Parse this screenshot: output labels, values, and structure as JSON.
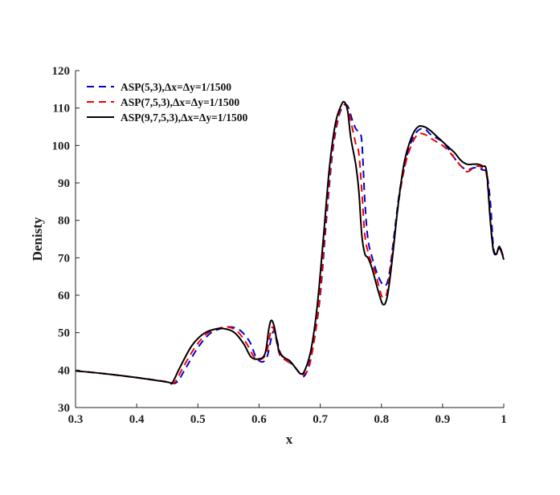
{
  "chart_data": {
    "type": "line",
    "xlabel": "x",
    "ylabel": "Denisty",
    "xlim": [
      0.3,
      1.0
    ],
    "ylim": [
      30,
      120
    ],
    "xticks": [
      "0.3",
      "0.4",
      "0.5",
      "0.6",
      "0.7",
      "0.8",
      "0.9",
      "1"
    ],
    "yticks": [
      "30",
      "40",
      "50",
      "60",
      "70",
      "80",
      "90",
      "100",
      "110",
      "120"
    ],
    "grid": false,
    "legend_position": "top-left",
    "series": [
      {
        "name": "ASP(5,3),Δx=Δy=1/1500",
        "color": "#0000cc",
        "style": "dashed",
        "points": [
          [
            0.3,
            39.8
          ],
          [
            0.35,
            39.0
          ],
          [
            0.4,
            38.0
          ],
          [
            0.45,
            36.9
          ],
          [
            0.465,
            36.7
          ],
          [
            0.48,
            40.5
          ],
          [
            0.5,
            46.0
          ],
          [
            0.52,
            49.8
          ],
          [
            0.54,
            51.2
          ],
          [
            0.555,
            51.5
          ],
          [
            0.57,
            50.5
          ],
          [
            0.585,
            47.5
          ],
          [
            0.595,
            43.5
          ],
          [
            0.605,
            42.2
          ],
          [
            0.613,
            43.5
          ],
          [
            0.62,
            48.5
          ],
          [
            0.624,
            50.5
          ],
          [
            0.628,
            49.0
          ],
          [
            0.635,
            44.5
          ],
          [
            0.645,
            42.5
          ],
          [
            0.655,
            41.5
          ],
          [
            0.665,
            39.5
          ],
          [
            0.672,
            38.2
          ],
          [
            0.68,
            40.5
          ],
          [
            0.69,
            48.0
          ],
          [
            0.7,
            60.0
          ],
          [
            0.71,
            80.0
          ],
          [
            0.72,
            98.0
          ],
          [
            0.73,
            107.5
          ],
          [
            0.738,
            110.5
          ],
          [
            0.745,
            110.5
          ],
          [
            0.752,
            107.0
          ],
          [
            0.758,
            104.5
          ],
          [
            0.763,
            103.5
          ],
          [
            0.768,
            101.0
          ],
          [
            0.773,
            85.0
          ],
          [
            0.778,
            75.0
          ],
          [
            0.785,
            70.0
          ],
          [
            0.795,
            65.0
          ],
          [
            0.805,
            62.5
          ],
          [
            0.812,
            65.0
          ],
          [
            0.82,
            75.0
          ],
          [
            0.83,
            88.0
          ],
          [
            0.84,
            96.0
          ],
          [
            0.85,
            101.5
          ],
          [
            0.86,
            104.0
          ],
          [
            0.87,
            104.5
          ],
          [
            0.88,
            103.0
          ],
          [
            0.89,
            102.0
          ],
          [
            0.9,
            101.0
          ],
          [
            0.91,
            99.0
          ],
          [
            0.92,
            96.5
          ],
          [
            0.93,
            94.5
          ],
          [
            0.94,
            93.5
          ],
          [
            0.95,
            94.0
          ],
          [
            0.958,
            94.0
          ],
          [
            0.965,
            93.5
          ],
          [
            0.972,
            92.5
          ],
          [
            0.978,
            85.0
          ],
          [
            0.983,
            73.0
          ],
          [
            0.988,
            71.0
          ],
          [
            0.993,
            72.5
          ],
          [
            1.0,
            70.0
          ]
        ]
      },
      {
        "name": "ASP(7,5,3),Δx=Δy=1/1500",
        "color": "#ee0000",
        "style": "dashed",
        "points": [
          [
            0.3,
            39.8
          ],
          [
            0.35,
            39.0
          ],
          [
            0.4,
            38.0
          ],
          [
            0.45,
            36.9
          ],
          [
            0.462,
            36.7
          ],
          [
            0.475,
            40.5
          ],
          [
            0.495,
            46.0
          ],
          [
            0.515,
            49.8
          ],
          [
            0.535,
            51.2
          ],
          [
            0.55,
            51.5
          ],
          [
            0.565,
            50.3
          ],
          [
            0.58,
            47.0
          ],
          [
            0.592,
            43.5
          ],
          [
            0.602,
            42.8
          ],
          [
            0.612,
            44.5
          ],
          [
            0.618,
            49.5
          ],
          [
            0.622,
            51.5
          ],
          [
            0.627,
            49.0
          ],
          [
            0.634,
            44.0
          ],
          [
            0.645,
            42.5
          ],
          [
            0.655,
            41.5
          ],
          [
            0.665,
            39.5
          ],
          [
            0.673,
            38.9
          ],
          [
            0.682,
            41.0
          ],
          [
            0.692,
            50.0
          ],
          [
            0.7,
            61.0
          ],
          [
            0.71,
            82.0
          ],
          [
            0.72,
            99.0
          ],
          [
            0.73,
            108.0
          ],
          [
            0.738,
            110.8
          ],
          [
            0.745,
            110.0
          ],
          [
            0.752,
            105.0
          ],
          [
            0.758,
            100.5
          ],
          [
            0.763,
            98.0
          ],
          [
            0.768,
            88.0
          ],
          [
            0.773,
            76.0
          ],
          [
            0.78,
            70.5
          ],
          [
            0.79,
            66.0
          ],
          [
            0.8,
            60.0
          ],
          [
            0.805,
            59.5
          ],
          [
            0.81,
            61.5
          ],
          [
            0.82,
            74.0
          ],
          [
            0.83,
            87.0
          ],
          [
            0.84,
            95.5
          ],
          [
            0.85,
            100.5
          ],
          [
            0.86,
            103.0
          ],
          [
            0.87,
            103.0
          ],
          [
            0.88,
            102.0
          ],
          [
            0.89,
            101.0
          ],
          [
            0.9,
            100.0
          ],
          [
            0.91,
            98.5
          ],
          [
            0.92,
            96.5
          ],
          [
            0.93,
            94.5
          ],
          [
            0.94,
            93.0
          ],
          [
            0.95,
            94.0
          ],
          [
            0.958,
            94.5
          ],
          [
            0.965,
            94.0
          ],
          [
            0.972,
            92.0
          ],
          [
            0.978,
            80.0
          ],
          [
            0.983,
            72.0
          ],
          [
            0.988,
            71.0
          ],
          [
            0.993,
            73.0
          ],
          [
            1.0,
            70.0
          ]
        ]
      },
      {
        "name": "ASP(9,7,5,3),Δx=Δy=1/1500",
        "color": "#000000",
        "style": "solid",
        "points": [
          [
            0.3,
            39.8
          ],
          [
            0.35,
            39.0
          ],
          [
            0.4,
            38.0
          ],
          [
            0.45,
            36.8
          ],
          [
            0.458,
            36.6
          ],
          [
            0.47,
            40.5
          ],
          [
            0.49,
            46.5
          ],
          [
            0.51,
            49.8
          ],
          [
            0.53,
            51.0
          ],
          [
            0.545,
            51.0
          ],
          [
            0.56,
            50.0
          ],
          [
            0.575,
            47.0
          ],
          [
            0.587,
            43.5
          ],
          [
            0.6,
            43.0
          ],
          [
            0.61,
            44.5
          ],
          [
            0.616,
            51.0
          ],
          [
            0.62,
            53.3
          ],
          [
            0.625,
            51.5
          ],
          [
            0.632,
            45.5
          ],
          [
            0.64,
            43.5
          ],
          [
            0.65,
            42.5
          ],
          [
            0.66,
            40.5
          ],
          [
            0.668,
            39.0
          ],
          [
            0.675,
            40.0
          ],
          [
            0.685,
            45.5
          ],
          [
            0.695,
            57.0
          ],
          [
            0.705,
            75.0
          ],
          [
            0.715,
            94.0
          ],
          [
            0.725,
            106.0
          ],
          [
            0.735,
            111.0
          ],
          [
            0.74,
            111.5
          ],
          [
            0.745,
            109.0
          ],
          [
            0.75,
            102.0
          ],
          [
            0.758,
            95.0
          ],
          [
            0.763,
            88.0
          ],
          [
            0.768,
            76.0
          ],
          [
            0.773,
            71.0
          ],
          [
            0.778,
            70.0
          ],
          [
            0.785,
            67.0
          ],
          [
            0.795,
            61.0
          ],
          [
            0.803,
            57.5
          ],
          [
            0.81,
            60.0
          ],
          [
            0.818,
            70.0
          ],
          [
            0.828,
            85.0
          ],
          [
            0.838,
            96.0
          ],
          [
            0.85,
            102.5
          ],
          [
            0.86,
            105.0
          ],
          [
            0.87,
            105.0
          ],
          [
            0.88,
            104.0
          ],
          [
            0.89,
            102.5
          ],
          [
            0.9,
            101.0
          ],
          [
            0.91,
            99.5
          ],
          [
            0.92,
            98.0
          ],
          [
            0.93,
            96.0
          ],
          [
            0.94,
            95.0
          ],
          [
            0.95,
            95.0
          ],
          [
            0.958,
            95.0
          ],
          [
            0.965,
            94.5
          ],
          [
            0.972,
            93.0
          ],
          [
            0.978,
            80.0
          ],
          [
            0.983,
            72.0
          ],
          [
            0.988,
            71.0
          ],
          [
            0.993,
            73.0
          ],
          [
            1.0,
            69.5
          ]
        ]
      }
    ]
  }
}
